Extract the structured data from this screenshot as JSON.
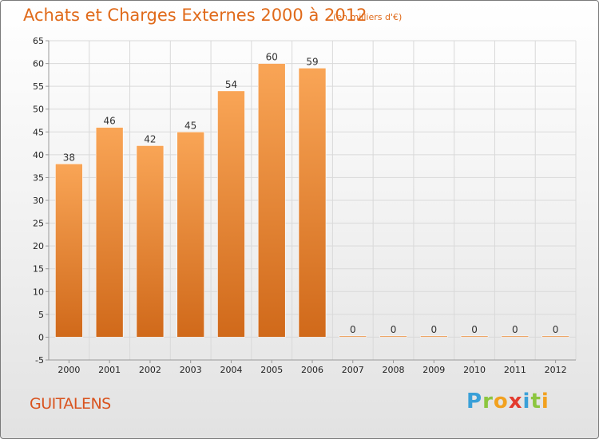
{
  "header": {
    "title": "Achats et Charges Externes 2000 à 2012",
    "subtitle": "(en milliers d'€)"
  },
  "footer": {
    "commune": "GUITALENS",
    "logo_letters": [
      {
        "ch": "P",
        "color": "#3aa0d8"
      },
      {
        "ch": "r",
        "color": "#8cc63f"
      },
      {
        "ch": "o",
        "color": "#f2a11f"
      },
      {
        "ch": "x",
        "color": "#e33b2e"
      },
      {
        "ch": "i",
        "color": "#3aa0d8"
      },
      {
        "ch": "t",
        "color": "#8cc63f"
      },
      {
        "ch": "i",
        "color": "#f2a11f"
      }
    ]
  },
  "chart_data": {
    "type": "bar",
    "title": "Achats et Charges Externes 2000 à 2012",
    "subtitle": "(en milliers d'€)",
    "xlabel": "",
    "ylabel": "",
    "categories": [
      "2000",
      "2001",
      "2002",
      "2003",
      "2004",
      "2005",
      "2006",
      "2007",
      "2008",
      "2009",
      "2010",
      "2011",
      "2012"
    ],
    "values": [
      38,
      46,
      42,
      45,
      54,
      60,
      59,
      0,
      0,
      0,
      0,
      0,
      0
    ],
    "ylim": [
      -5,
      65
    ],
    "yticks": [
      -5,
      0,
      5,
      10,
      15,
      20,
      25,
      30,
      35,
      40,
      45,
      50,
      55,
      60,
      65
    ],
    "grid": true,
    "legend": "none",
    "colors": {
      "bar_light": "#f9a556",
      "bar_dark": "#d0691a",
      "grid": "#d9d9d9",
      "axis": "#999999"
    }
  }
}
